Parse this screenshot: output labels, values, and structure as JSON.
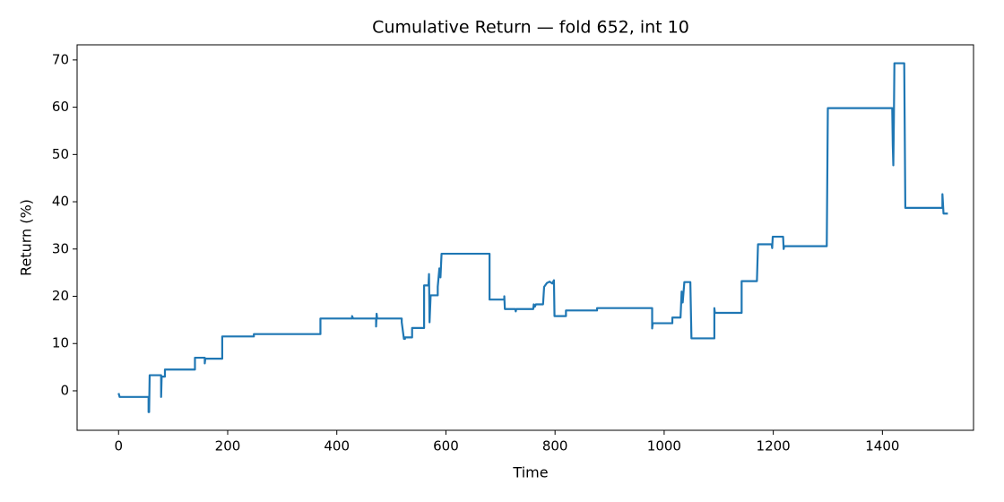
{
  "chart_data": {
    "type": "line",
    "title": "Cumulative Return — fold 652, int 10",
    "x_label": "Time",
    "y_label": "Return (%)",
    "xlim": [
      -76,
      1567
    ],
    "ylim": [
      -8.35,
      73.2
    ],
    "xticks": [
      0,
      200,
      400,
      600,
      800,
      1000,
      1200,
      1400
    ],
    "yticks": [
      0,
      10,
      20,
      30,
      40,
      50,
      60,
      70
    ],
    "grid": false,
    "series": [
      {
        "color": "#1f77b4",
        "x": [
          0,
          2,
          55,
          55,
          56,
          57,
          78,
          78,
          79,
          85,
          85,
          140,
          140,
          158,
          158,
          159,
          190,
          190,
          248,
          248,
          370,
          370,
          428,
          428,
          430,
          472,
          472,
          473,
          474,
          519,
          519,
          523,
          525,
          525,
          538,
          538,
          560,
          560,
          568,
          569,
          570,
          572,
          585,
          585,
          588,
          590,
          592,
          680,
          680,
          707,
          707,
          708,
          727,
          728,
          729,
          760,
          761,
          763,
          765,
          778,
          780,
          785,
          790,
          795,
          798,
          799,
          820,
          820,
          877,
          877,
          978,
          978,
          979,
          1015,
          1015,
          1030,
          1032,
          1034,
          1037,
          1048,
          1050,
          1092,
          1092,
          1093,
          1142,
          1142,
          1170,
          1172,
          1197,
          1198,
          1199,
          1218,
          1219,
          1220,
          1298,
          1300,
          1418,
          1419,
          1420,
          1421,
          1422,
          1440,
          1442,
          1510,
          1510,
          1512,
          1520
        ],
        "values": [
          -0.5,
          -1.3,
          -1.3,
          -4.5,
          -4.5,
          3.3,
          3.3,
          -1.3,
          3.0,
          3.0,
          4.5,
          4.5,
          7.0,
          7.0,
          5.8,
          6.8,
          6.8,
          11.5,
          11.5,
          12.0,
          12.0,
          15.3,
          15.3,
          15.8,
          15.3,
          15.3,
          13.6,
          16.3,
          15.3,
          15.3,
          14.5,
          11.0,
          11.0,
          11.3,
          11.3,
          13.3,
          13.3,
          22.3,
          22.3,
          24.7,
          14.5,
          20.2,
          20.2,
          22.0,
          25.9,
          24.0,
          29.0,
          29.0,
          19.3,
          19.3,
          20.0,
          17.3,
          17.3,
          16.8,
          17.3,
          17.3,
          18.3,
          17.8,
          18.3,
          18.3,
          22.0,
          22.8,
          23.1,
          22.7,
          23.4,
          15.8,
          15.8,
          17.0,
          17.0,
          17.5,
          17.5,
          13.2,
          14.3,
          14.3,
          15.5,
          15.5,
          21.0,
          18.7,
          23.0,
          23.0,
          11.1,
          11.1,
          17.5,
          16.5,
          16.5,
          23.2,
          23.2,
          31.0,
          31.0,
          30.2,
          32.6,
          32.6,
          30.0,
          30.6,
          30.6,
          59.8,
          59.8,
          52,
          47.7,
          57,
          69.3,
          69.3,
          38.7,
          38.7,
          41.6,
          37.5,
          37.5
        ]
      }
    ]
  }
}
